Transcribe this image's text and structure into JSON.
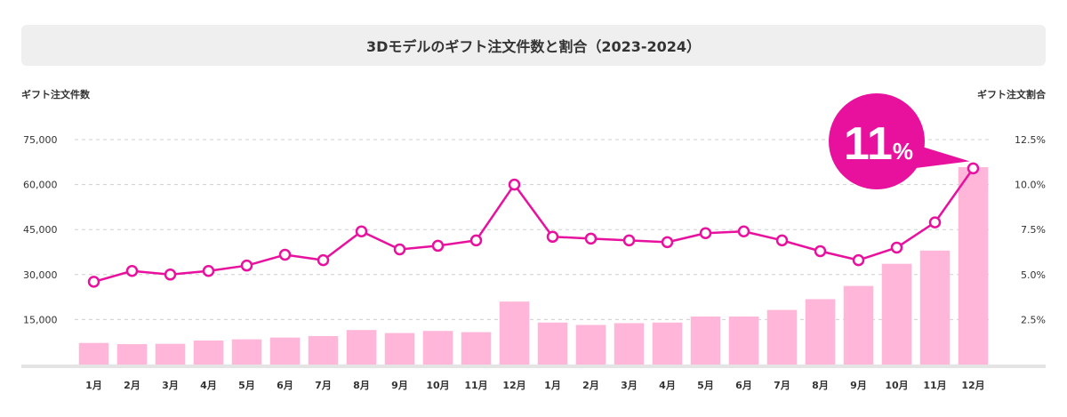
{
  "chart_data": {
    "type": "bar",
    "title": "3Dモデルのギフト注文件数と割合（2023-2024）",
    "ylabel_left": "ギフト注文件数",
    "ylabel_right": "ギフト注文割合",
    "categories": [
      "1月",
      "2月",
      "3月",
      "4月",
      "5月",
      "6月",
      "7月",
      "8月",
      "9月",
      "10月",
      "11月",
      "12月",
      "1月",
      "2月",
      "3月",
      "4月",
      "5月",
      "6月",
      "7月",
      "8月",
      "9月",
      "10月",
      "11月",
      "12月"
    ],
    "yticks_left": [
      "15,000",
      "30,000",
      "45,000",
      "60,000",
      "75,000"
    ],
    "yticks_right": [
      "2.5%",
      "5.0%",
      "7.5%",
      "10.0%",
      "12.5%"
    ],
    "ylim_left": [
      0,
      75000
    ],
    "ylim_right": [
      0,
      12.5
    ],
    "series": [
      {
        "kind": "bar",
        "axis": "left",
        "color": "#ffb6d9",
        "values": [
          7200,
          6800,
          6900,
          8000,
          8400,
          9000,
          9500,
          11500,
          10500,
          11200,
          10800,
          21000,
          14000,
          13200,
          13800,
          14000,
          16000,
          16000,
          18200,
          21800,
          26200,
          33600,
          38000,
          65800
        ]
      },
      {
        "kind": "line",
        "axis": "right",
        "color": "#e8119e",
        "values": [
          4.6,
          5.2,
          5.0,
          5.2,
          5.5,
          6.1,
          5.8,
          7.4,
          6.4,
          6.6,
          6.9,
          10.0,
          7.1,
          7.0,
          6.9,
          6.8,
          7.3,
          7.4,
          6.9,
          6.3,
          5.8,
          6.5,
          7.9,
          10.9
        ]
      }
    ],
    "grid": true,
    "callout": {
      "number": "11",
      "unit": "%",
      "color": "#e8119e"
    }
  }
}
